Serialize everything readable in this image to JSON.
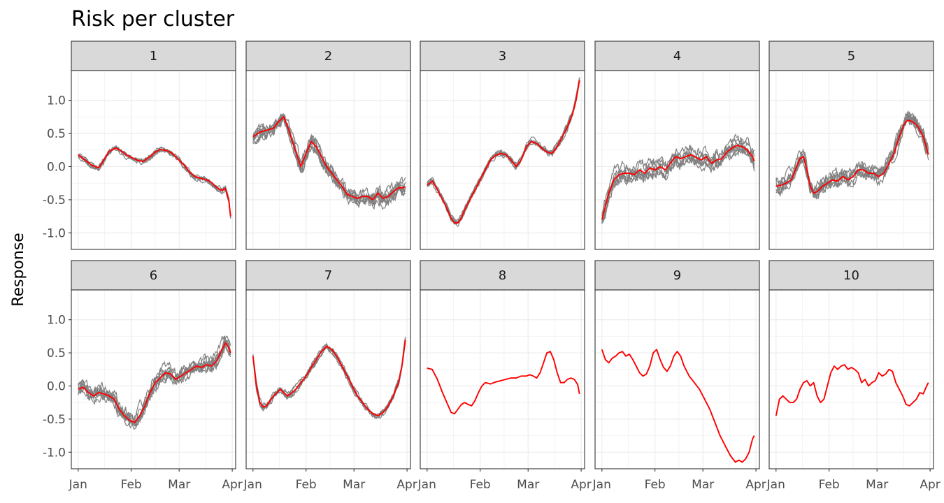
{
  "chart_data": {
    "type": "line",
    "title": "Risk per cluster",
    "xlabel": "",
    "ylabel": "Response",
    "x_axis": {
      "tick_labels": [
        "Jan",
        "Feb",
        "Mar",
        "Apr"
      ],
      "tick_days": [
        0,
        31,
        59,
        90
      ],
      "range_days": [
        -4,
        92
      ]
    },
    "y_axis": {
      "ticks": [
        1.0,
        0.5,
        0.0,
        -0.5,
        -1.0
      ],
      "tick_labels": [
        "1.0",
        "0.5",
        "0.0",
        "-0.5",
        "-1.0"
      ],
      "range": [
        -1.25,
        1.45
      ]
    },
    "grid": true,
    "colors": {
      "mean_line": "#ff0000",
      "sample_lines": "#808080",
      "strip_fill": "#d9d9d9",
      "panel_border": "#333333",
      "grid": "#ebebeb"
    },
    "facets": [
      {
        "label": "1",
        "band": "narrow",
        "samples": 6,
        "x": [
          0,
          5,
          8,
          12,
          15,
          18,
          22,
          25,
          28,
          31,
          35,
          38,
          42,
          45,
          48,
          52,
          55,
          58,
          62,
          65,
          68,
          72,
          75,
          78,
          81,
          84,
          86,
          88,
          89
        ],
        "mean": [
          0.18,
          0.08,
          0.02,
          -0.02,
          0.1,
          0.23,
          0.28,
          0.24,
          0.18,
          0.14,
          0.09,
          0.08,
          0.15,
          0.22,
          0.26,
          0.24,
          0.2,
          0.12,
          0.02,
          -0.08,
          -0.15,
          -0.18,
          -0.2,
          -0.24,
          -0.32,
          -0.36,
          -0.33,
          -0.5,
          -0.75
        ]
      },
      {
        "label": "2",
        "band": "wide",
        "samples": 8,
        "x": [
          0,
          4,
          8,
          12,
          15,
          18,
          21,
          24,
          26,
          28,
          31,
          34,
          37,
          40,
          43,
          46,
          49,
          52,
          55,
          58,
          61,
          64,
          67,
          70,
          73,
          76,
          79,
          82,
          85,
          88,
          89
        ],
        "mean": [
          0.45,
          0.52,
          0.55,
          0.58,
          0.68,
          0.75,
          0.55,
          0.3,
          0.15,
          0.0,
          0.2,
          0.38,
          0.3,
          0.15,
          0.0,
          -0.1,
          -0.2,
          -0.3,
          -0.42,
          -0.45,
          -0.48,
          -0.45,
          -0.45,
          -0.5,
          -0.4,
          -0.48,
          -0.45,
          -0.38,
          -0.32,
          -0.32,
          -0.3
        ]
      },
      {
        "label": "3",
        "band": "narrow",
        "samples": 7,
        "x": [
          0,
          3,
          5,
          8,
          11,
          14,
          16,
          18,
          20,
          22,
          25,
          28,
          31,
          34,
          37,
          40,
          43,
          46,
          49,
          52,
          55,
          58,
          61,
          64,
          67,
          70,
          73,
          76,
          79,
          82,
          85,
          87,
          89
        ],
        "mean": [
          -0.28,
          -0.22,
          -0.3,
          -0.45,
          -0.6,
          -0.78,
          -0.85,
          -0.85,
          -0.78,
          -0.65,
          -0.5,
          -0.35,
          -0.2,
          -0.05,
          0.1,
          0.17,
          0.2,
          0.18,
          0.1,
          0.0,
          0.1,
          0.3,
          0.38,
          0.35,
          0.28,
          0.22,
          0.2,
          0.3,
          0.45,
          0.6,
          0.8,
          1.0,
          1.3
        ]
      },
      {
        "label": "4",
        "band": "wide",
        "samples": 8,
        "x": [
          0,
          2,
          4,
          7,
          10,
          13,
          16,
          19,
          22,
          25,
          28,
          31,
          34,
          37,
          40,
          43,
          46,
          49,
          52,
          55,
          58,
          61,
          64,
          67,
          70,
          73,
          76,
          79,
          82,
          85,
          88,
          89
        ],
        "mean": [
          -0.8,
          -0.6,
          -0.4,
          -0.2,
          -0.12,
          -0.1,
          -0.1,
          -0.12,
          -0.05,
          -0.1,
          -0.02,
          -0.05,
          0.0,
          -0.05,
          0.05,
          0.15,
          0.12,
          0.15,
          0.18,
          0.14,
          0.1,
          0.15,
          0.05,
          0.1,
          0.12,
          0.22,
          0.28,
          0.32,
          0.3,
          0.25,
          0.15,
          0.08
        ]
      },
      {
        "label": "5",
        "band": "wide",
        "samples": 8,
        "x": [
          0,
          3,
          6,
          9,
          12,
          14,
          16,
          18,
          20,
          22,
          24,
          27,
          30,
          33,
          36,
          39,
          42,
          45,
          48,
          51,
          54,
          57,
          60,
          63,
          66,
          69,
          72,
          75,
          77,
          80,
          83,
          86,
          89
        ],
        "mean": [
          -0.3,
          -0.28,
          -0.25,
          -0.2,
          0.0,
          0.12,
          0.15,
          -0.05,
          -0.3,
          -0.4,
          -0.38,
          -0.3,
          -0.25,
          -0.2,
          -0.22,
          -0.15,
          -0.2,
          -0.15,
          -0.05,
          -0.05,
          -0.1,
          -0.1,
          -0.15,
          -0.1,
          0.05,
          0.2,
          0.45,
          0.65,
          0.7,
          0.68,
          0.6,
          0.45,
          0.18
        ]
      },
      {
        "label": "6",
        "band": "wide",
        "samples": 8,
        "x": [
          0,
          3,
          6,
          9,
          12,
          15,
          18,
          21,
          24,
          27,
          30,
          33,
          36,
          39,
          42,
          45,
          48,
          51,
          54,
          57,
          60,
          63,
          66,
          69,
          72,
          75,
          78,
          81,
          84,
          86,
          88,
          89
        ],
        "mean": [
          -0.05,
          -0.02,
          -0.1,
          -0.15,
          -0.1,
          -0.12,
          -0.15,
          -0.2,
          -0.35,
          -0.45,
          -0.52,
          -0.55,
          -0.45,
          -0.3,
          -0.1,
          0.05,
          0.12,
          0.2,
          0.18,
          0.1,
          0.15,
          0.2,
          0.25,
          0.3,
          0.28,
          0.32,
          0.3,
          0.38,
          0.55,
          0.65,
          0.58,
          0.5
        ]
      },
      {
        "label": "7",
        "band": "narrow",
        "samples": 6,
        "x": [
          0,
          2,
          4,
          6,
          8,
          10,
          12,
          14,
          16,
          18,
          20,
          22,
          25,
          28,
          31,
          34,
          37,
          40,
          43,
          46,
          49,
          52,
          55,
          58,
          61,
          64,
          67,
          70,
          73,
          76,
          79,
          82,
          85,
          87,
          89
        ],
        "mean": [
          0.45,
          0.0,
          -0.25,
          -0.32,
          -0.3,
          -0.22,
          -0.15,
          -0.1,
          -0.05,
          -0.1,
          -0.15,
          -0.12,
          -0.05,
          0.05,
          0.15,
          0.28,
          0.4,
          0.52,
          0.6,
          0.55,
          0.45,
          0.3,
          0.15,
          0.0,
          -0.15,
          -0.25,
          -0.35,
          -0.42,
          -0.45,
          -0.4,
          -0.3,
          -0.15,
          0.05,
          0.3,
          0.7
        ]
      },
      {
        "label": "8",
        "band": "none",
        "samples": 0,
        "x": [
          0,
          3,
          6,
          9,
          12,
          14,
          16,
          18,
          20,
          22,
          24,
          26,
          28,
          30,
          32,
          34,
          37,
          40,
          43,
          46,
          49,
          52,
          55,
          58,
          60,
          62,
          64,
          66,
          68,
          70,
          72,
          74,
          76,
          78,
          80,
          82,
          84,
          86,
          88,
          89
        ],
        "mean": [
          0.27,
          0.25,
          0.1,
          -0.1,
          -0.28,
          -0.4,
          -0.42,
          -0.35,
          -0.28,
          -0.25,
          -0.28,
          -0.3,
          -0.22,
          -0.1,
          0.0,
          0.05,
          0.03,
          0.06,
          0.08,
          0.1,
          0.12,
          0.12,
          0.15,
          0.15,
          0.17,
          0.15,
          0.12,
          0.2,
          0.35,
          0.5,
          0.52,
          0.4,
          0.2,
          0.05,
          0.05,
          0.1,
          0.12,
          0.1,
          0.02,
          -0.12
        ]
      },
      {
        "label": "9",
        "band": "none",
        "samples": 0,
        "x": [
          0,
          2,
          4,
          6,
          8,
          10,
          12,
          14,
          16,
          18,
          20,
          22,
          24,
          26,
          28,
          30,
          32,
          34,
          36,
          38,
          40,
          42,
          44,
          46,
          48,
          51,
          54,
          57,
          60,
          63,
          66,
          69,
          72,
          75,
          78,
          80,
          82,
          84,
          86,
          88,
          89
        ],
        "mean": [
          0.55,
          0.4,
          0.35,
          0.42,
          0.45,
          0.5,
          0.52,
          0.45,
          0.48,
          0.4,
          0.3,
          0.2,
          0.15,
          0.18,
          0.3,
          0.5,
          0.55,
          0.4,
          0.28,
          0.22,
          0.3,
          0.45,
          0.52,
          0.45,
          0.3,
          0.15,
          0.05,
          -0.05,
          -0.2,
          -0.35,
          -0.55,
          -0.75,
          -0.9,
          -1.05,
          -1.15,
          -1.12,
          -1.15,
          -1.1,
          -1.0,
          -0.8,
          -0.75
        ]
      },
      {
        "label": "10",
        "band": "none",
        "samples": 0,
        "x": [
          0,
          2,
          4,
          6,
          8,
          10,
          12,
          14,
          16,
          18,
          20,
          22,
          24,
          26,
          28,
          30,
          32,
          34,
          36,
          38,
          40,
          42,
          44,
          46,
          48,
          50,
          52,
          54,
          56,
          58,
          60,
          62,
          64,
          66,
          68,
          70,
          72,
          74,
          76,
          78,
          80,
          82,
          84,
          86,
          88,
          89
        ],
        "mean": [
          -0.45,
          -0.2,
          -0.15,
          -0.2,
          -0.25,
          -0.25,
          -0.2,
          -0.05,
          0.05,
          0.08,
          0.0,
          0.05,
          -0.15,
          -0.25,
          -0.2,
          0.0,
          0.2,
          0.3,
          0.25,
          0.3,
          0.32,
          0.25,
          0.28,
          0.25,
          0.2,
          0.05,
          0.1,
          0.0,
          0.05,
          0.08,
          0.2,
          0.15,
          0.18,
          0.25,
          0.22,
          0.05,
          -0.05,
          -0.15,
          -0.28,
          -0.3,
          -0.25,
          -0.2,
          -0.1,
          -0.12,
          0.0,
          0.05
        ]
      }
    ]
  }
}
